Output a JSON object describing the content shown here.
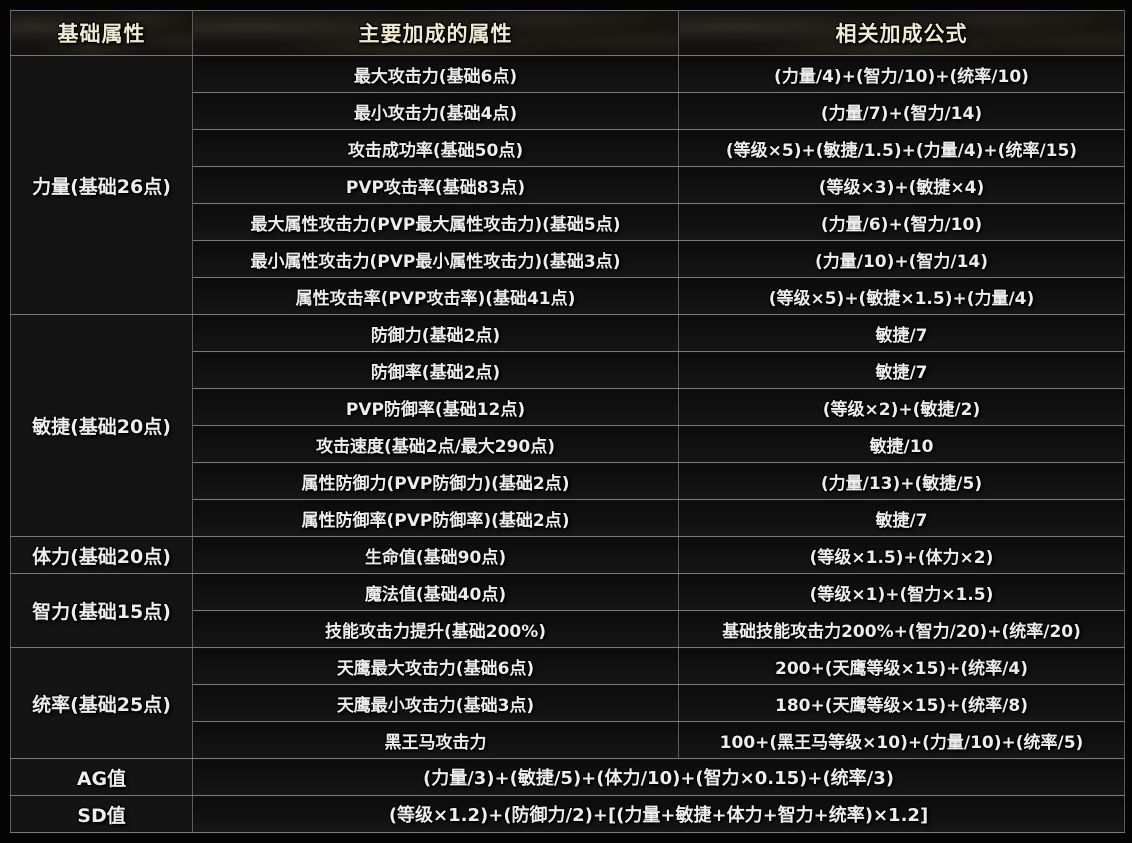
{
  "header": {
    "col1": "基础属性",
    "col2": "主要加成的属性",
    "col3": "相关加成公式"
  },
  "groups": [
    {
      "name": "力量(基础26点)",
      "rows": [
        {
          "attr": "最大攻击力(基础6点)",
          "formula": "(力量/4)+(智力/10)+(统率/10)"
        },
        {
          "attr": "最小攻击力(基础4点)",
          "formula": "(力量/7)+(智力/14)"
        },
        {
          "attr": "攻击成功率(基础50点)",
          "formula": "(等级×5)+(敏捷/1.5)+(力量/4)+(统率/15)"
        },
        {
          "attr": "PVP攻击率(基础83点)",
          "formula": "(等级×3)+(敏捷×4)"
        },
        {
          "attr": "最大属性攻击力(PVP最大属性攻击力)(基础5点)",
          "formula": "(力量/6)+(智力/10)"
        },
        {
          "attr": "最小属性攻击力(PVP最小属性攻击力)(基础3点)",
          "formula": "(力量/10)+(智力/14)"
        },
        {
          "attr": "属性攻击率(PVP攻击率)(基础41点)",
          "formula": "(等级×5)+(敏捷×1.5)+(力量/4)"
        }
      ]
    },
    {
      "name": "敏捷(基础20点)",
      "rows": [
        {
          "attr": "防御力(基础2点)",
          "formula": "敏捷/7"
        },
        {
          "attr": "防御率(基础2点)",
          "formula": "敏捷/7"
        },
        {
          "attr": "PVP防御率(基础12点)",
          "formula": "(等级×2)+(敏捷/2)"
        },
        {
          "attr": "攻击速度(基础2点/最大290点)",
          "formula": "敏捷/10"
        },
        {
          "attr": "属性防御力(PVP防御力)(基础2点)",
          "formula": "(力量/13)+(敏捷/5)"
        },
        {
          "attr": "属性防御率(PVP防御率)(基础2点)",
          "formula": "敏捷/7"
        }
      ]
    },
    {
      "name": "体力(基础20点)",
      "rows": [
        {
          "attr": "生命值(基础90点)",
          "formula": "(等级×1.5)+(体力×2)"
        }
      ]
    },
    {
      "name": "智力(基础15点)",
      "rows": [
        {
          "attr": "魔法值(基础40点)",
          "formula": "(等级×1)+(智力×1.5)"
        },
        {
          "attr": "技能攻击力提升(基础200%)",
          "formula": "基础技能攻击力200%+(智力/20)+(统率/20)"
        }
      ]
    },
    {
      "name": "统率(基础25点)",
      "rows": [
        {
          "attr": "天鹰最大攻击力(基础6点)",
          "formula": "200+(天鹰等级×15)+(统率/4)"
        },
        {
          "attr": "天鹰最小攻击力(基础3点)",
          "formula": "180+(天鹰等级×15)+(统率/8)"
        },
        {
          "attr": "黑王马攻击力",
          "formula": "100+(黑王马等级×10)+(力量/10)+(统率/5)"
        }
      ]
    }
  ],
  "footer_rows": [
    {
      "name": "AG值",
      "formula": "(力量/3)+(敏捷/5)+(体力/10)+(智力×0.15)+(统率/3)"
    },
    {
      "name": "SD值",
      "formula": "(等级×1.2)+(防御力/2)+[(力量+敏捷+体力+智力+统率)×1.2]"
    }
  ],
  "colors": {
    "page_background": "#050505",
    "cell_background": "#101010",
    "group_cell_background": "#141414",
    "header_background": "#15130f",
    "header_text": "#f1e9d2",
    "body_text": "#ededed",
    "grid_line": "#787878"
  }
}
